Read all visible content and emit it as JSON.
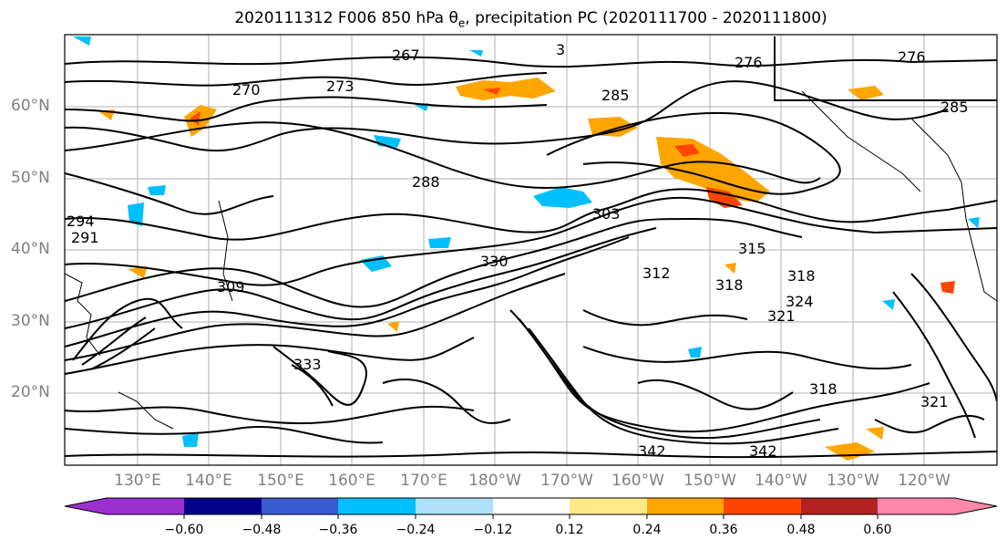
{
  "title": {
    "prefix": "2020111312 F006 850 hPa θ",
    "subscript": "e",
    "suffix": ", precipitation PC (2020111700 - 2020111800)"
  },
  "map": {
    "lat_labels": [
      "60°N",
      "50°N",
      "40°N",
      "30°N",
      "20°N"
    ],
    "lon_labels": [
      "130°E",
      "140°E",
      "150°E",
      "160°E",
      "170°E",
      "180°W",
      "170°W",
      "160°W",
      "150°W",
      "140°W",
      "130°W",
      "120°W"
    ],
    "contour_labels": [
      "267",
      "276",
      "270",
      "276",
      "273",
      "285",
      "285",
      "288",
      "291",
      "294",
      "303",
      "309",
      "312",
      "318",
      "318",
      "315",
      "324",
      "321",
      "318",
      "321",
      "330",
      "342",
      "342",
      "333",
      "3"
    ],
    "contour_color": "#000000",
    "coast_color": "#000000"
  },
  "colorbar": {
    "ticks": [
      "−0.60",
      "−0.48",
      "−0.36",
      "−0.24",
      "−0.12",
      "0.12",
      "0.24",
      "0.36",
      "0.48",
      "0.60"
    ],
    "colors": [
      "#9b30d0",
      "#00008b",
      "#3a5bd0",
      "#00bfff",
      "#aee0fa",
      "#ffffff",
      "#ffe98a",
      "#ffa500",
      "#ff4500",
      "#b22222",
      "#ff88aa"
    ]
  }
}
